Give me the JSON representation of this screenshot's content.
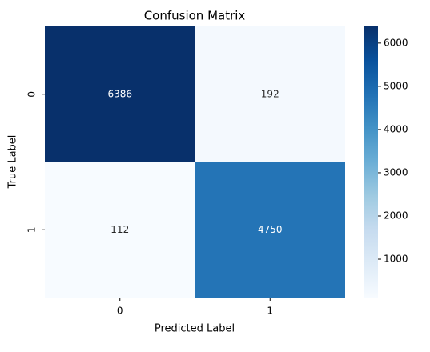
{
  "chart_data": {
    "type": "heatmap",
    "title": "Confusion Matrix",
    "xlabel": "Predicted Label",
    "ylabel": "True Label",
    "x_categories": [
      "0",
      "1"
    ],
    "y_categories": [
      "0",
      "1"
    ],
    "values": [
      [
        6386,
        192
      ],
      [
        112,
        4750
      ]
    ],
    "colormap": [
      "#f7fbff",
      "#deebf7",
      "#c6dbef",
      "#9ecae1",
      "#6baed6",
      "#4292c6",
      "#2171b5",
      "#08519c",
      "#08306b"
    ],
    "clim": [
      112,
      6386
    ],
    "cticks": [
      1000,
      2000,
      3000,
      4000,
      5000,
      6000
    ]
  }
}
